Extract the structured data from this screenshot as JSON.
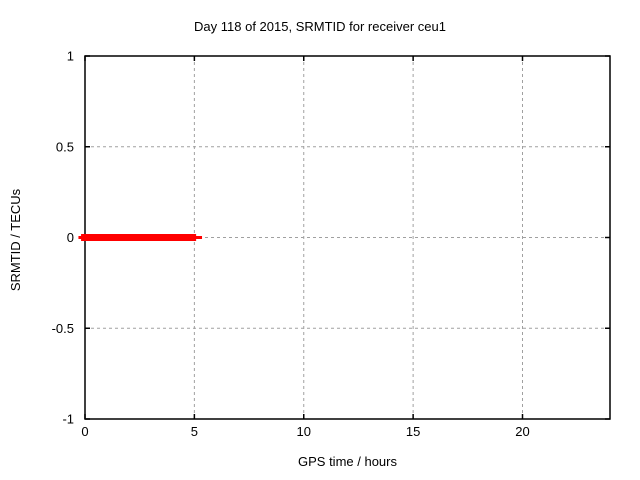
{
  "chart_data": {
    "type": "line",
    "title": "Day 118 of 2015, SRMTID for receiver ceu1",
    "xlabel": "GPS time / hours",
    "ylabel": "SRMTID / TECUs",
    "xlim": [
      0,
      24
    ],
    "ylim": [
      -1,
      1
    ],
    "grid": true,
    "grid_color": "#a0a0a0",
    "axis_color": "#000000",
    "background": "#ffffff",
    "xticks": [
      {
        "value": 0,
        "label": "0"
      },
      {
        "value": 5,
        "label": "5"
      },
      {
        "value": 10,
        "label": "10"
      },
      {
        "value": 15,
        "label": "15"
      },
      {
        "value": 20,
        "label": "20"
      }
    ],
    "yticks": [
      {
        "value": -1,
        "label": "-1"
      },
      {
        "value": -0.5,
        "label": "-0.5"
      },
      {
        "value": 0,
        "label": "0"
      },
      {
        "value": 0.5,
        "label": "0.5"
      },
      {
        "value": 1,
        "label": "1"
      }
    ],
    "series": [
      {
        "name": "SRMTID",
        "color": "#ff0000",
        "y_value": 0,
        "x_thick": [
          -0.18,
          5.08
        ],
        "x_thin": [
          -0.3,
          5.35
        ]
      }
    ]
  }
}
